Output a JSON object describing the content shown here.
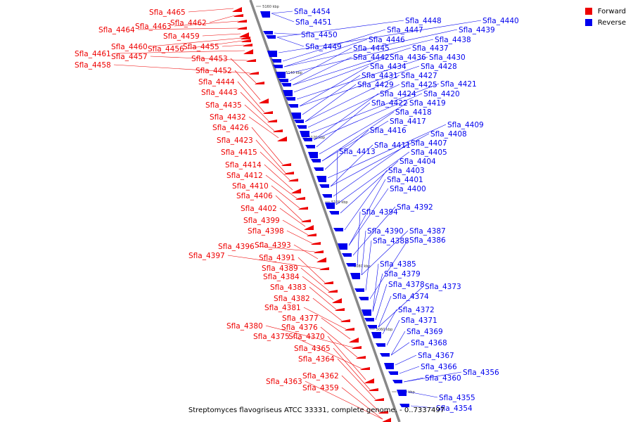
{
  "caption": "Streptomyces flavogriseus ATCC 33331, complete genome. - 0..7337497",
  "legend": [
    {
      "label": "Forward",
      "color": "#ee0000"
    },
    {
      "label": "Reverse",
      "color": "#0000ee"
    }
  ],
  "colors": {
    "forward": "#ee0000",
    "reverse": "#0000ee",
    "backbone": "#888888"
  },
  "ticks": [
    "5160 kbp",
    "5140 kbp",
    "5120 kbp",
    "5100 kbp",
    "5080 kbp",
    "5060 kbp",
    "5040 kbp"
  ],
  "forward_genes": [
    "Sfla_4465",
    "Sfla_4462",
    "Sfla_4463",
    "Sfla_4464",
    "Sfla_4459",
    "Sfla_4460",
    "Sfla_4456",
    "Sfla_4455",
    "Sfla_4461",
    "Sfla_4457",
    "Sfla_4458",
    "Sfla_4453",
    "Sfla_4452",
    "Sfla_4444",
    "Sfla_4443",
    "Sfla_4435",
    "Sfla_4432",
    "Sfla_4426",
    "Sfla_4423",
    "Sfla_4415",
    "Sfla_4414",
    "Sfla_4412",
    "Sfla_4410",
    "Sfla_4406",
    "Sfla_4402",
    "Sfla_4399",
    "Sfla_4398",
    "Sfla_4396",
    "Sfla_4393",
    "Sfla_4397",
    "Sfla_4391",
    "Sfla_4389",
    "Sfla_4384",
    "Sfla_4383",
    "Sfla_4382",
    "Sfla_4381",
    "Sfla_4377",
    "Sfla_4380",
    "Sfla_4376",
    "Sfla_4375",
    "Sfla_4370",
    "Sfla_4365",
    "Sfla_4364",
    "Sfla_4362",
    "Sfla_4363",
    "Sfla_4359"
  ],
  "reverse_genes": [
    "Sfla_4454",
    "Sfla_4451",
    "Sfla_4450",
    "Sfla_4449",
    "Sfla_4448",
    "Sfla_4440",
    "Sfla_4447",
    "Sfla_4439",
    "Sfla_4446",
    "Sfla_4438",
    "Sfla_4445",
    "Sfla_4437",
    "Sfla_4442",
    "Sfla_4436",
    "Sfla_4430",
    "Sfla_4434",
    "Sfla_4428",
    "Sfla_4431",
    "Sfla_4427",
    "Sfla_4429",
    "Sfla_4425",
    "Sfla_4421",
    "Sfla_4424",
    "Sfla_4420",
    "Sfla_4422",
    "Sfla_4419",
    "Sfla_4418",
    "Sfla_4417",
    "Sfla_4416",
    "Sfla_4409",
    "Sfla_4408",
    "Sfla_4411",
    "Sfla_4407",
    "Sfla_4413",
    "Sfla_4405",
    "Sfla_4404",
    "Sfla_4403",
    "Sfla_4401",
    "Sfla_4400",
    "Sfla_4392",
    "Sfla_4394",
    "Sfla_4390",
    "Sfla_4387",
    "Sfla_4388",
    "Sfla_4386",
    "Sfla_4385",
    "Sfla_4379",
    "Sfla_4378",
    "Sfla_4373",
    "Sfla_4374",
    "Sfla_4372",
    "Sfla_4371",
    "Sfla_4369",
    "Sfla_4368",
    "Sfla_4367",
    "Sfla_4366",
    "Sfla_4356",
    "Sfla_4360",
    "Sfla_4355",
    "Sfla_4354"
  ]
}
